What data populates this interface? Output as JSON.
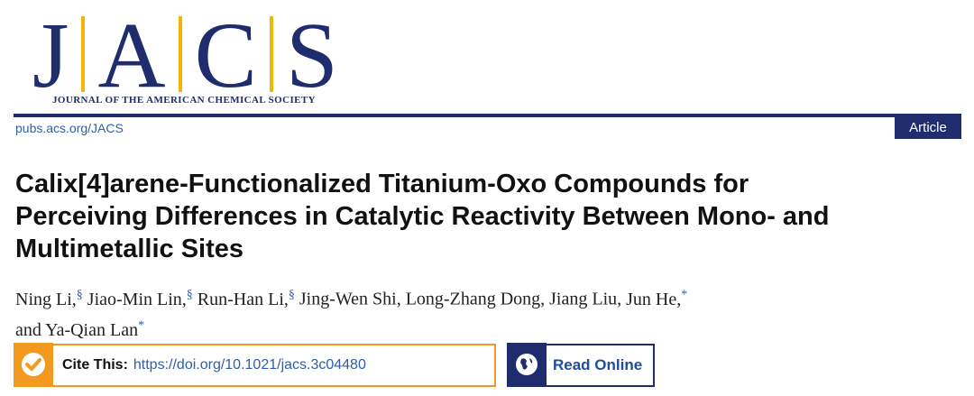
{
  "header": {
    "logo_letters": [
      "J",
      "A",
      "C",
      "S"
    ],
    "journal_name": "JOURNAL OF THE AMERICAN CHEMICAL SOCIETY",
    "url": "pubs.acs.org/JACS",
    "article_type": "Article"
  },
  "title_lines": [
    "Calix[4]arene-Functionalized Titanium-Oxo Compounds for",
    "Perceiving Differences in Catalytic Reactivity Between Mono- and",
    "Multimetallic Sites"
  ],
  "author_lines": [
    [
      {
        "name": "Ning Li,",
        "mark": "§"
      },
      {
        "name": "Jiao-Min Lin,",
        "mark": "§"
      },
      {
        "name": "Run-Han Li,",
        "mark": "§"
      },
      {
        "name": "Jing-Wen Shi,"
      },
      {
        "name": "Long-Zhang Dong,"
      },
      {
        "name": "Jiang Liu,"
      },
      {
        "name": "Jun He,",
        "mark": "*"
      }
    ],
    [
      {
        "name": "and Ya-Qian Lan",
        "mark": "*"
      }
    ]
  ],
  "cite": {
    "label": "Cite This:",
    "doi": "https://doi.org/10.1021/jacs.3c04480"
  },
  "read_online": "Read Online"
}
